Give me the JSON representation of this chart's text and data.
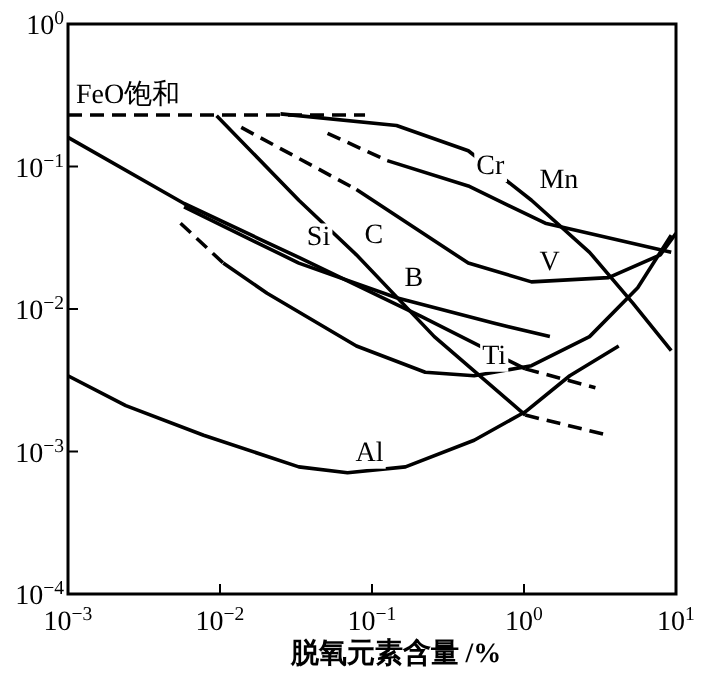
{
  "chart_data": {
    "type": "line",
    "xlabel": "脱氧元素含量 /%",
    "log": "xy",
    "xlim": [
      0.001,
      10
    ],
    "ylim": [
      0.0001,
      1
    ],
    "xticks": [
      {
        "value": 0.001,
        "label": "10$^{−3}$"
      },
      {
        "value": 0.01,
        "label": "10$^{−2}$"
      },
      {
        "value": 0.1,
        "label": "10$^{−1}$"
      },
      {
        "value": 1,
        "label": "10$^{0}$"
      },
      {
        "value": 10,
        "label": "10$^{1}$"
      }
    ],
    "yticks": [
      {
        "value": 0.0001,
        "label": "10$^{−4}$"
      },
      {
        "value": 0.001,
        "label": "10$^{−3}$"
      },
      {
        "value": 0.01,
        "label": "10$^{−2}$"
      },
      {
        "value": 0.1,
        "label": "10$^{−1}$"
      },
      {
        "value": 1,
        "label": "10$^{0}$"
      }
    ],
    "series": [
      {
        "name": "FeO饱和",
        "color": "#000000",
        "line_style": "dashed",
        "x": [
          0.001,
          0.09
        ],
        "values": [
          0.23,
          0.23
        ]
      },
      {
        "name": "Mn",
        "color": "#000000",
        "line_style": "solid",
        "x": [
          0.025,
          0.145,
          0.43,
          1.12,
          2.7,
          5.2,
          9.3
        ],
        "values": [
          0.234,
          0.194,
          0.129,
          0.058,
          0.025,
          0.011,
          0.0051
        ]
      },
      {
        "color": "#000000",
        "line_style": "dashed",
        "x": [
          0.051,
          0.126
        ],
        "values": [
          0.171,
          0.11
        ]
      },
      {
        "name": "Cr",
        "color": "#000000",
        "line_style": "solid",
        "x": [
          0.126,
          0.43,
          1.38,
          9.3
        ],
        "values": [
          0.11,
          0.073,
          0.04,
          0.025
        ]
      },
      {
        "color": "#000000",
        "line_style": "dashed",
        "x": [
          0.0138,
          0.079
        ],
        "values": [
          0.188,
          0.069
        ]
      },
      {
        "name": "V",
        "color": "#000000",
        "line_style": "solid",
        "x": [
          0.079,
          0.43,
          1.12,
          3.6,
          7.9,
          10
        ],
        "values": [
          0.069,
          0.021,
          0.0155,
          0.0166,
          0.024,
          0.034
        ]
      },
      {
        "name": "C",
        "color": "#000000",
        "line_style": "solid",
        "x": [
          0.0095,
          0.033,
          0.079,
          0.257,
          1.02
        ],
        "values": [
          0.227,
          0.058,
          0.024,
          0.0064,
          0.0018
        ]
      },
      {
        "color": "#000000",
        "line_style": "dashed",
        "x": [
          1.02,
          3.6
        ],
        "values": [
          0.0018,
          0.0013
        ]
      },
      {
        "name": "Si",
        "color": "#000000",
        "line_style": "solid",
        "x": [
          0.001,
          0.0058,
          0.033,
          0.209,
          1.02
        ],
        "values": [
          0.16,
          0.055,
          0.023,
          0.0089,
          0.0038
        ]
      },
      {
        "color": "#000000",
        "line_style": "dashed",
        "x": [
          1.02,
          2.95
        ],
        "values": [
          0.0038,
          0.0028
        ]
      },
      {
        "name": "B",
        "color": "#000000",
        "line_style": "solid",
        "x": [
          0.0058,
          0.033,
          0.145,
          0.62,
          1.48
        ],
        "values": [
          0.052,
          0.021,
          0.012,
          0.008,
          0.0064
        ]
      },
      {
        "color": "#000000",
        "line_style": "dashed",
        "x": [
          0.0055,
          0.0105
        ],
        "values": [
          0.04,
          0.021
        ]
      },
      {
        "name": "Ti",
        "color": "#000000",
        "line_style": "solid",
        "x": [
          0.0105,
          0.0204,
          0.079,
          0.224,
          0.47,
          1.12,
          2.7,
          5.6,
          9.3
        ],
        "values": [
          0.021,
          0.0129,
          0.0055,
          0.0036,
          0.0034,
          0.004,
          0.0064,
          0.0141,
          0.033
        ]
      },
      {
        "name": "Al",
        "color": "#000000",
        "line_style": "solid",
        "x": [
          0.001,
          0.0024,
          0.0078,
          0.033,
          0.069,
          0.166,
          0.47,
          1.02,
          2.0,
          4.2
        ],
        "values": [
          0.0034,
          0.0021,
          0.0013,
          0.00078,
          0.00071,
          0.00078,
          0.0012,
          0.0019,
          0.0034,
          0.0055
        ]
      }
    ]
  }
}
